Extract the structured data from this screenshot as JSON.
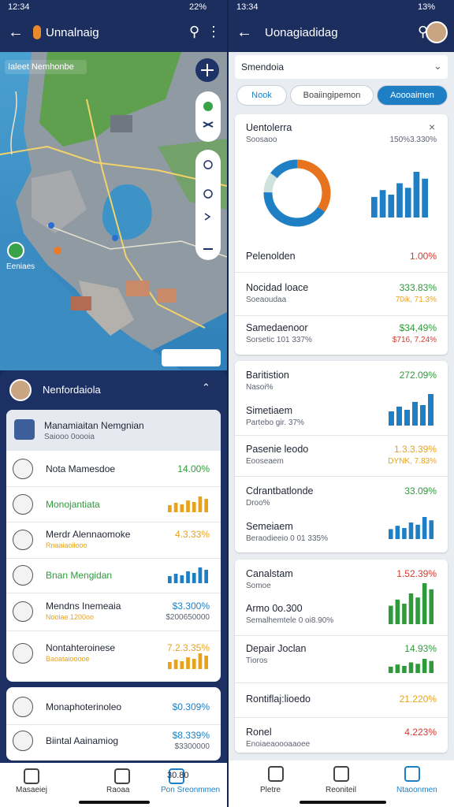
{
  "left": {
    "status": {
      "time": "12:34",
      "battery": "22%"
    },
    "appbar": {
      "title": "Unnalnaig"
    },
    "map": {
      "title": "Ialeet Nemhonbe",
      "marker": "Eeniaes"
    },
    "sheet": {
      "title": "Nenfordaiola",
      "selected": {
        "title": "Manamiaitan Nemgnian",
        "sub": "Saiooo 0oooia"
      },
      "items": [
        {
          "title": "Nota Mamesdoe",
          "value": "14.00%"
        },
        {
          "title": "Monojantiata"
        },
        {
          "title": "Merdr Alennaomoke",
          "sub": "Rnaaiaoilooo",
          "value": "4.3.33%"
        },
        {
          "title": "Bnan Mengidan"
        },
        {
          "title": "Mendns Inemeaia",
          "sub": "Nooiae 1200oo",
          "value": "$3.300%",
          "subvalue": "$200650000"
        },
        {
          "title": "Nontahteroinese",
          "sub": "Baoataiooooe",
          "value": "7.2.3.35%"
        }
      ],
      "items2": [
        {
          "title": "Monaphoterinoleo",
          "value": "$0.309%"
        },
        {
          "title": "Biintal Aainamiog",
          "value": "$8.339%",
          "subvalue": "$3300000"
        }
      ]
    },
    "nav": [
      "Masaeiej",
      "Raoaa",
      "Pon Sreonmmen"
    ],
    "badge": "30.80"
  },
  "right": {
    "status": {
      "time": "13:34",
      "battery": "13%"
    },
    "appbar": {
      "title": "Uonagiadidag"
    },
    "filter": {
      "title": "Smendoia",
      "tabs": [
        "Nook",
        "Boaiingipemon",
        "Aoooaimen"
      ]
    },
    "cards": [
      {
        "rows": [
          {
            "title": "Uentolerra",
            "sub": "Soosaoo",
            "subvalue": "150%3.330%"
          },
          {
            "title": "Pelenolden",
            "value": "1.00%"
          },
          {
            "title": "Nocidad loace",
            "sub": "Soeaoudaa",
            "value": "333.83%",
            "subvalue": "70ik, 71.3%"
          },
          {
            "title": "Samedaenoor",
            "sub": "Sorsetic 101 337%",
            "value": "$34,49%",
            "subvalue": "$716, 7.24%"
          }
        ]
      },
      {
        "rows": [
          {
            "title": "Baritistion",
            "sub": "Nasoi%",
            "value": "272.09%"
          },
          {
            "title": "Simetiaem",
            "sub": "Partebo gir. 37%"
          },
          {
            "title": "Pasenie leodo",
            "sub": "Eooseaem",
            "value": "1.3.3.39%",
            "subvalue": "DYNK, 7.83%"
          },
          {
            "title": "Cdrantbatlonde",
            "sub": "Droo%",
            "value": "33.09%"
          },
          {
            "title": "Semeiaem",
            "sub": "Beraodieeio 0 01 335%"
          }
        ]
      },
      {
        "rows": [
          {
            "title": "Canalstam",
            "sub": "Somoe",
            "value": "1.52.39%"
          },
          {
            "title": "Armo 0o.300",
            "sub": "Semalhemtele 0 oi8.90%"
          },
          {
            "title": "Depair Joclan",
            "sub": "Tioros",
            "value": "14.93%"
          },
          {
            "title": "Rontiflaj:lioedo",
            "value": "21.220%"
          },
          {
            "title": "Ronel",
            "sub": "Enoiaeaoooaaoee",
            "value": "4.223%"
          }
        ]
      }
    ],
    "nav": [
      "Pletre",
      "Reoniteil",
      "Ntaoonmen"
    ]
  }
}
